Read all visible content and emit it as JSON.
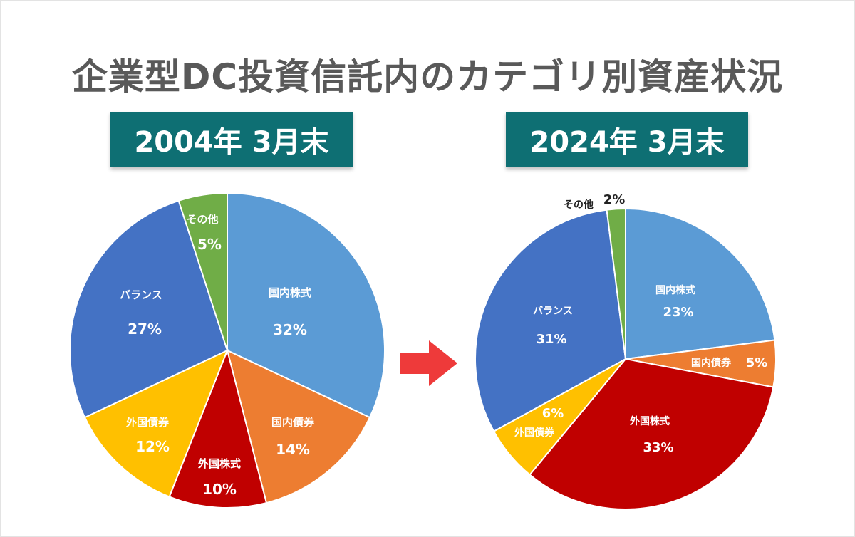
{
  "title": "企業型DC投資信託内のカテゴリ別資産状況",
  "colors": {
    "domestic_stock": "#5b9bd5",
    "domestic_bond": "#ed7d31",
    "foreign_stock": "#c00000",
    "foreign_bond": "#ffc000",
    "balance": "#4472c4",
    "other": "#70ad47",
    "badge": "#0e6f73",
    "arrow": "#ee3a3a"
  },
  "chart_data": [
    {
      "type": "pie",
      "title": "2004年 3月末",
      "slices": [
        {
          "label": "国内株式",
          "value": 32,
          "value_label": "32%",
          "color": "#5b9bd5"
        },
        {
          "label": "国内債券",
          "value": 14,
          "value_label": "14%",
          "color": "#ed7d31"
        },
        {
          "label": "外国株式",
          "value": 10,
          "value_label": "10%",
          "color": "#c00000"
        },
        {
          "label": "外国債券",
          "value": 12,
          "value_label": "12%",
          "color": "#ffc000"
        },
        {
          "label": "バランス",
          "value": 27,
          "value_label": "27%",
          "color": "#4472c4"
        },
        {
          "label": "その他",
          "value": 5,
          "value_label": "5%",
          "color": "#70ad47"
        }
      ]
    },
    {
      "type": "pie",
      "title": "2024年 3月末",
      "slices": [
        {
          "label": "国内株式",
          "value": 23,
          "value_label": "23%",
          "color": "#5b9bd5"
        },
        {
          "label": "国内債券",
          "value": 5,
          "value_label": "5%",
          "color": "#ed7d31"
        },
        {
          "label": "外国株式",
          "value": 33,
          "value_label": "33%",
          "color": "#c00000"
        },
        {
          "label": "外国債券",
          "value": 6,
          "value_label": "6%",
          "color": "#ffc000"
        },
        {
          "label": "バランス",
          "value": 31,
          "value_label": "31%",
          "color": "#4472c4"
        },
        {
          "label": "その他",
          "value": 2,
          "value_label": "2%",
          "color": "#70ad47"
        }
      ]
    }
  ]
}
